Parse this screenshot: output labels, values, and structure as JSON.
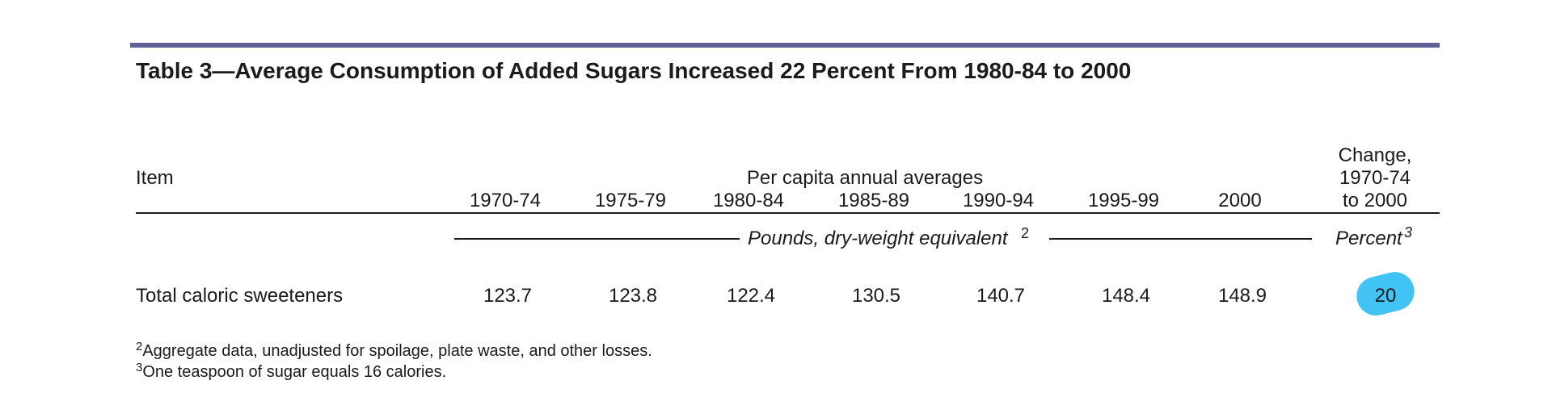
{
  "table": {
    "title": "Table 3—Average Consumption of Added Sugars Increased 22 Percent From 1980-84 to 2000",
    "item_header": "Item",
    "group_header": "Per capita annual averages",
    "change_header": [
      "Change,",
      "1970-74",
      "to 2000"
    ],
    "columns": [
      "1970-74",
      "1975-79",
      "1980-84",
      "1985-89",
      "1990-94",
      "1995-99",
      "2000"
    ],
    "unit_label": "Pounds, dry-weight equivalent",
    "unit_footnote_mark": "2",
    "percent_label": "Percent",
    "percent_footnote_mark": "3",
    "rows": [
      {
        "label": "Total caloric sweeteners",
        "values": [
          "123.7",
          "123.8",
          "122.4",
          "130.5",
          "140.7",
          "148.4",
          "148.9"
        ],
        "change": "20"
      }
    ],
    "footnotes": [
      {
        "mark": "2",
        "text": "Aggregate data, unadjusted for spoilage, plate waste, and other losses."
      },
      {
        "mark": "3",
        "text": "One teaspoon of sugar equals 16 calories."
      }
    ]
  },
  "colors": {
    "top_rule": "#5f6195",
    "highlight": "#41c4f5"
  }
}
